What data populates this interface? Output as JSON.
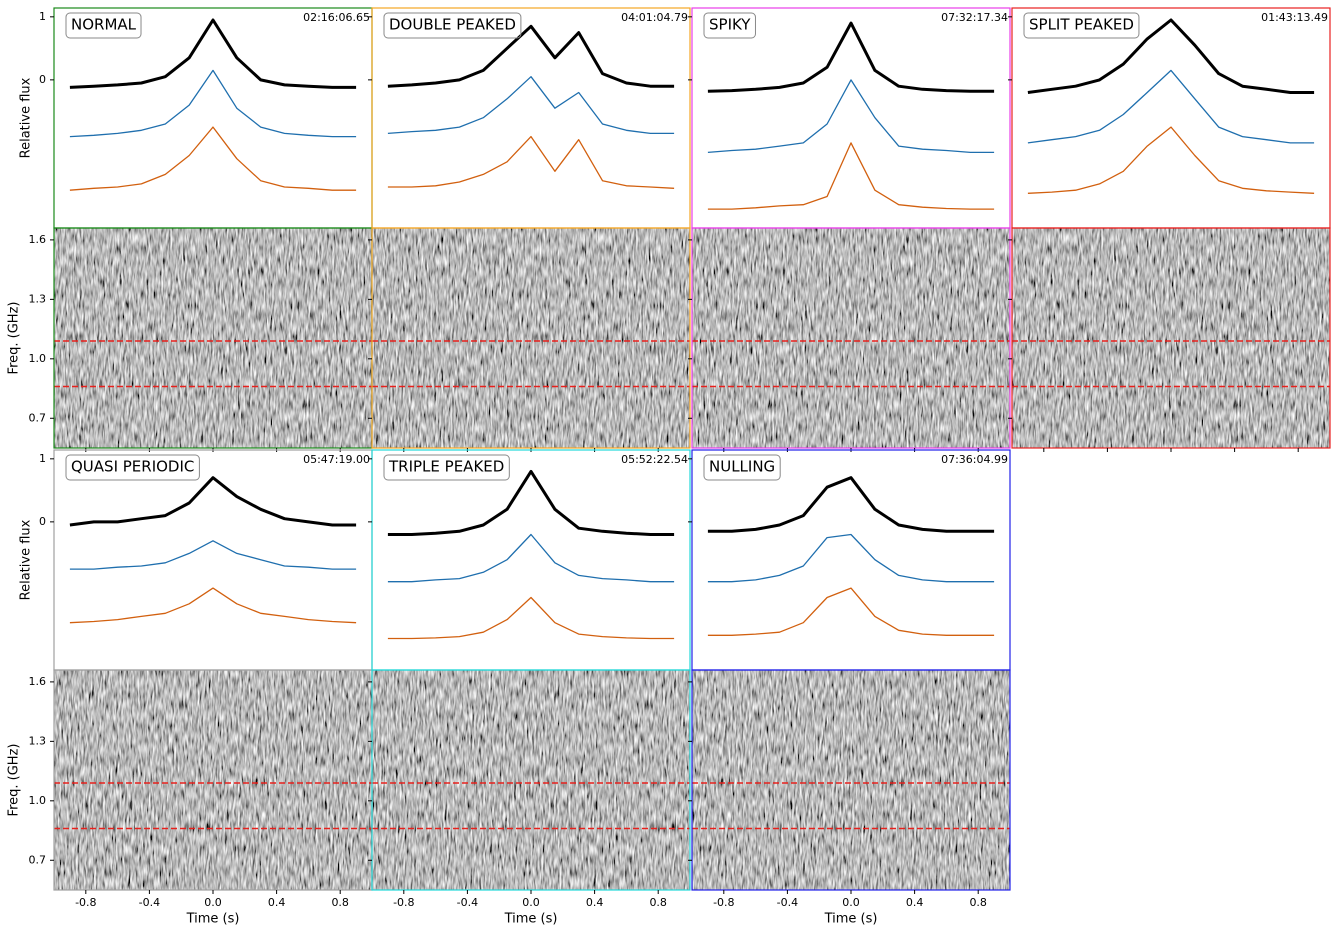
{
  "axes": {
    "x_label": "Time (s)",
    "flux_label": "Relative flux",
    "freq_label": "Freq. (GHz)",
    "xlim": [
      -1,
      1
    ],
    "xticks": [
      -0.8,
      -0.4,
      {
        "value": 0,
        "label": "0.0"
      },
      0.4,
      0.8
    ],
    "flux_ylim": [
      -2.35,
      1.14
    ],
    "flux_ticks": [
      0,
      1
    ],
    "freq_ylim": [
      0.55,
      1.66
    ],
    "freq_ticks": [
      0.7,
      {
        "value": 1,
        "label": "1.0"
      },
      1.3,
      1.6
    ],
    "cutoffs": [
      1.09,
      0.86
    ]
  },
  "chart_data": [
    {
      "type": "profile",
      "label": "NORMAL",
      "label_color": "#1a8a1a",
      "timestamp": "02:16:06.65",
      "x": [
        -0.9,
        -0.75,
        -0.6,
        -0.45,
        -0.3,
        -0.15,
        0,
        0.15,
        0.3,
        0.45,
        0.6,
        0.75,
        0.9
      ],
      "series": [
        {
          "color": "#000000",
          "values": [
            -0.12,
            -0.1,
            -0.08,
            -0.05,
            0.05,
            0.35,
            0.95,
            0.35,
            0.0,
            -0.08,
            -0.1,
            -0.12,
            -0.12
          ]
        },
        {
          "color": "#1f6fae",
          "values": [
            -0.9,
            -0.88,
            -0.85,
            -0.8,
            -0.7,
            -0.4,
            0.15,
            -0.45,
            -0.75,
            -0.85,
            -0.88,
            -0.9,
            -0.9
          ]
        },
        {
          "color": "#d2600f",
          "values": [
            -1.75,
            -1.72,
            -1.7,
            -1.65,
            -1.5,
            -1.2,
            -0.75,
            -1.25,
            -1.6,
            -1.7,
            -1.72,
            -1.75,
            -1.75
          ]
        }
      ]
    },
    {
      "type": "profile",
      "label": "DOUBLE PEAKED",
      "label_color": "#f5a623",
      "timestamp": "04:01:04.79",
      "x": [
        -0.9,
        -0.75,
        -0.6,
        -0.45,
        -0.3,
        -0.15,
        0,
        0.15,
        0.3,
        0.45,
        0.6,
        0.75,
        0.9
      ],
      "series": [
        {
          "color": "#000000",
          "values": [
            -0.1,
            -0.08,
            -0.05,
            0.0,
            0.15,
            0.5,
            0.85,
            0.35,
            0.75,
            0.1,
            -0.05,
            -0.1,
            -0.1
          ]
        },
        {
          "color": "#1f6fae",
          "values": [
            -0.85,
            -0.82,
            -0.8,
            -0.75,
            -0.6,
            -0.3,
            0.05,
            -0.45,
            -0.2,
            -0.7,
            -0.8,
            -0.85,
            -0.85
          ]
        },
        {
          "color": "#d2600f",
          "values": [
            -1.7,
            -1.7,
            -1.68,
            -1.62,
            -1.5,
            -1.3,
            -0.9,
            -1.45,
            -0.95,
            -1.6,
            -1.68,
            -1.7,
            -1.72
          ]
        }
      ]
    },
    {
      "type": "profile",
      "label": "SPIKY",
      "label_color": "#e83ee8",
      "timestamp": "07:32:17.34",
      "x": [
        -0.9,
        -0.75,
        -0.6,
        -0.45,
        -0.3,
        -0.15,
        0,
        0.15,
        0.3,
        0.45,
        0.6,
        0.75,
        0.9
      ],
      "series": [
        {
          "color": "#000000",
          "values": [
            -0.18,
            -0.17,
            -0.15,
            -0.12,
            -0.05,
            0.2,
            0.9,
            0.15,
            -0.1,
            -0.15,
            -0.17,
            -0.18,
            -0.18
          ]
        },
        {
          "color": "#1f6fae",
          "values": [
            -1.15,
            -1.12,
            -1.1,
            -1.05,
            -1.0,
            -0.7,
            0.0,
            -0.6,
            -1.05,
            -1.1,
            -1.12,
            -1.15,
            -1.15
          ]
        },
        {
          "color": "#d2600f",
          "values": [
            -2.05,
            -2.05,
            -2.03,
            -2.0,
            -1.98,
            -1.85,
            -1.0,
            -1.75,
            -1.98,
            -2.02,
            -2.04,
            -2.05,
            -2.05
          ]
        }
      ]
    },
    {
      "type": "profile",
      "label": "SPLIT PEAKED",
      "label_color": "#e82020",
      "timestamp": "01:43:13.49",
      "x": [
        -0.9,
        -0.75,
        -0.6,
        -0.45,
        -0.3,
        -0.15,
        0,
        0.15,
        0.3,
        0.45,
        0.6,
        0.75,
        0.9
      ],
      "series": [
        {
          "color": "#000000",
          "values": [
            -0.2,
            -0.15,
            -0.1,
            0.0,
            0.25,
            0.65,
            0.95,
            0.55,
            0.1,
            -0.1,
            -0.15,
            -0.2,
            -0.2
          ]
        },
        {
          "color": "#1f6fae",
          "values": [
            -1.0,
            -0.95,
            -0.9,
            -0.8,
            -0.55,
            -0.2,
            0.15,
            -0.3,
            -0.75,
            -0.9,
            -0.95,
            -1.0,
            -1.0
          ]
        },
        {
          "color": "#d2600f",
          "values": [
            -1.8,
            -1.78,
            -1.75,
            -1.65,
            -1.45,
            -1.05,
            -0.75,
            -1.2,
            -1.6,
            -1.72,
            -1.76,
            -1.78,
            -1.8
          ]
        }
      ]
    },
    {
      "type": "profile",
      "label": "QUASI PERIODIC",
      "label_color": "#a0a0a0",
      "timestamp": "05:47:19.00",
      "x": [
        -0.9,
        -0.75,
        -0.6,
        -0.45,
        -0.3,
        -0.15,
        0,
        0.15,
        0.3,
        0.45,
        0.6,
        0.75,
        0.9
      ],
      "series": [
        {
          "color": "#000000",
          "values": [
            -0.05,
            0.0,
            0.0,
            0.05,
            0.1,
            0.3,
            0.7,
            0.4,
            0.2,
            0.05,
            0.0,
            -0.05,
            -0.05
          ]
        },
        {
          "color": "#1f6fae",
          "values": [
            -0.75,
            -0.75,
            -0.72,
            -0.7,
            -0.65,
            -0.5,
            -0.3,
            -0.5,
            -0.6,
            -0.7,
            -0.72,
            -0.75,
            -0.75
          ]
        },
        {
          "color": "#d2600f",
          "values": [
            -1.6,
            -1.58,
            -1.55,
            -1.5,
            -1.45,
            -1.3,
            -1.05,
            -1.3,
            -1.45,
            -1.5,
            -1.55,
            -1.58,
            -1.6
          ]
        }
      ]
    },
    {
      "type": "profile",
      "label": "TRIPLE PEAKED",
      "label_color": "#22d8d8",
      "timestamp": "05:52:22.54",
      "x": [
        -0.9,
        -0.75,
        -0.6,
        -0.45,
        -0.3,
        -0.15,
        0,
        0.15,
        0.3,
        0.45,
        0.6,
        0.75,
        0.9
      ],
      "series": [
        {
          "color": "#000000",
          "values": [
            -0.2,
            -0.2,
            -0.18,
            -0.15,
            -0.05,
            0.2,
            0.8,
            0.2,
            -0.1,
            -0.15,
            -0.18,
            -0.2,
            -0.2
          ]
        },
        {
          "color": "#1f6fae",
          "values": [
            -0.95,
            -0.95,
            -0.92,
            -0.9,
            -0.8,
            -0.6,
            -0.2,
            -0.65,
            -0.85,
            -0.9,
            -0.92,
            -0.95,
            -0.95
          ]
        },
        {
          "color": "#d2600f",
          "values": [
            -1.85,
            -1.85,
            -1.84,
            -1.82,
            -1.75,
            -1.55,
            -1.2,
            -1.6,
            -1.78,
            -1.82,
            -1.84,
            -1.85,
            -1.85
          ]
        }
      ]
    },
    {
      "type": "profile",
      "label": "NULLING",
      "label_color": "#2020e8",
      "timestamp": "07:36:04.99",
      "x": [
        -0.9,
        -0.75,
        -0.6,
        -0.45,
        -0.3,
        -0.15,
        0,
        0.15,
        0.3,
        0.45,
        0.6,
        0.75,
        0.9
      ],
      "series": [
        {
          "color": "#000000",
          "values": [
            -0.15,
            -0.15,
            -0.12,
            -0.05,
            0.1,
            0.55,
            0.7,
            0.2,
            -0.05,
            -0.12,
            -0.15,
            -0.15,
            -0.15
          ]
        },
        {
          "color": "#1f6fae",
          "values": [
            -0.95,
            -0.95,
            -0.92,
            -0.85,
            -0.7,
            -0.25,
            -0.2,
            -0.6,
            -0.85,
            -0.92,
            -0.95,
            -0.95,
            -0.95
          ]
        },
        {
          "color": "#d2600f",
          "values": [
            -1.8,
            -1.8,
            -1.78,
            -1.75,
            -1.6,
            -1.2,
            -1.05,
            -1.5,
            -1.72,
            -1.78,
            -1.8,
            -1.8,
            -1.8
          ]
        }
      ]
    }
  ]
}
